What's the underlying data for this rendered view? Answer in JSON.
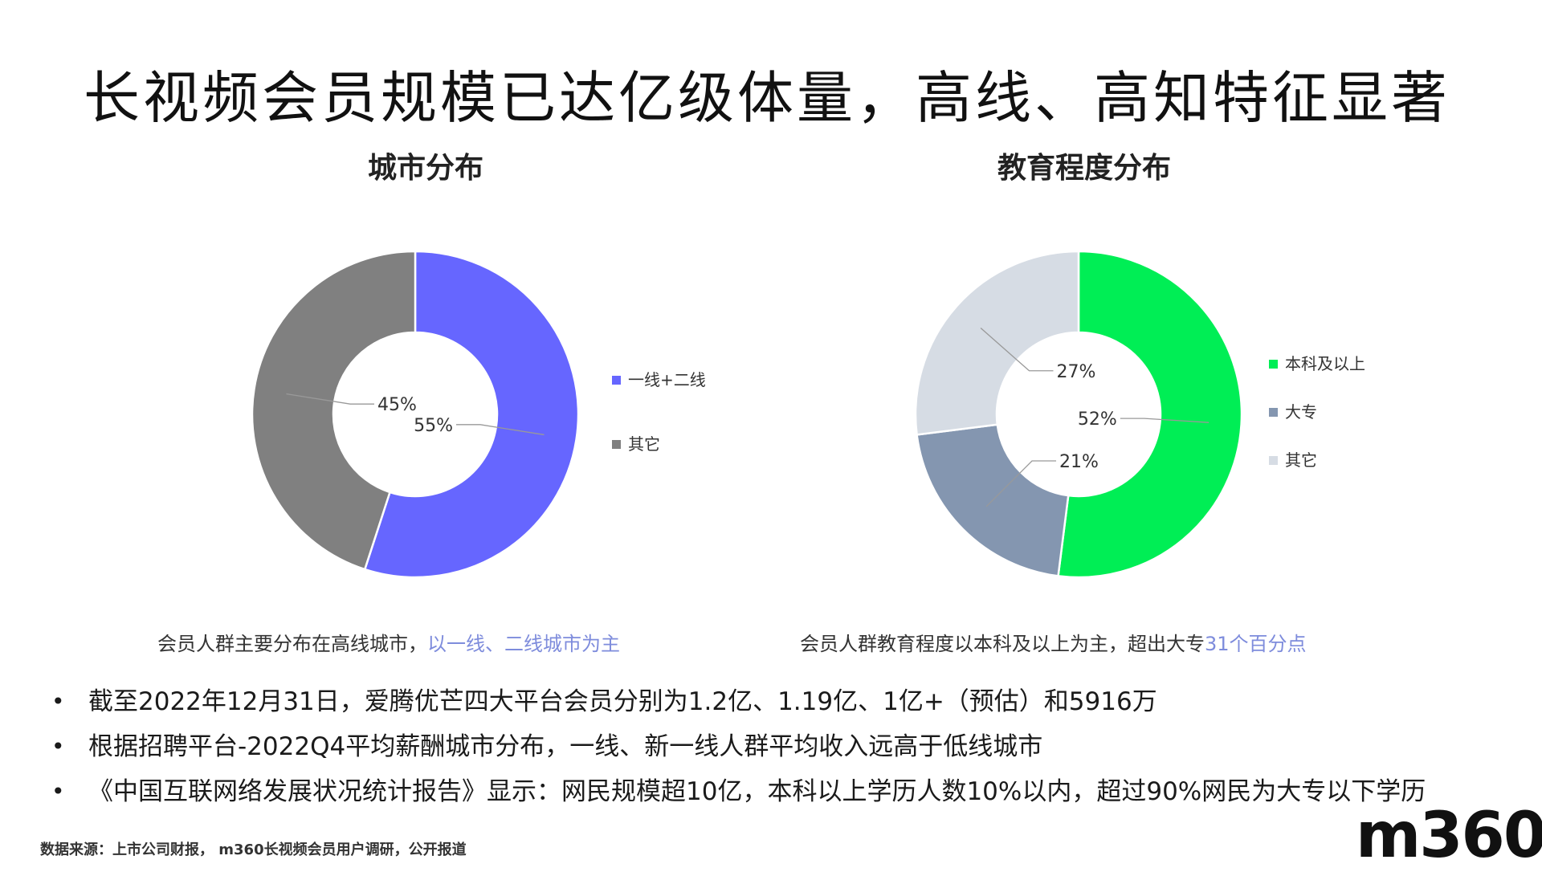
{
  "title": "长视频会员规模已达亿级体量，高线、高知特征显著",
  "chart_data": [
    {
      "type": "pie",
      "title": "城市分布",
      "donut": true,
      "categories": [
        "一线+二线",
        "其它"
      ],
      "values": [
        55,
        45
      ],
      "value_labels": [
        "55%",
        "45%"
      ],
      "colors": [
        "#6666ff",
        "#808080"
      ],
      "legend_position": "right",
      "caption_plain": "会员人群主要分布在高线城市，",
      "caption_highlight": "以一线、二线城市为主"
    },
    {
      "type": "pie",
      "title": "教育程度分布",
      "donut": true,
      "categories": [
        "本科及以上",
        "大专",
        "其它"
      ],
      "values": [
        52,
        21,
        27
      ],
      "value_labels": [
        "52%",
        "21%",
        "27%"
      ],
      "colors": [
        "#00ee55",
        "#8496b0",
        "#d6dce4"
      ],
      "legend_position": "right",
      "caption_plain": "会员人群教育程度以本科及以上为主，超出大专",
      "caption_highlight": "31个百分点"
    }
  ],
  "bullets": [
    "截至2022年12月31日，爱腾优芒四大平台会员分别为1.2亿、1.19亿、1亿+（预估）和5916万",
    "根据招聘平台-2022Q4平均薪酬城市分布，一线、新一线人群平均收入远高于低线城市",
    "《中国互联网络发展状况统计报告》显示：网民规模超10亿，本科以上学历人数10%以内，超过90%网民为大专以下学历"
  ],
  "source": "数据来源：上市公司财报， m360长视频会员用户调研，公开报道",
  "logo": "m360"
}
